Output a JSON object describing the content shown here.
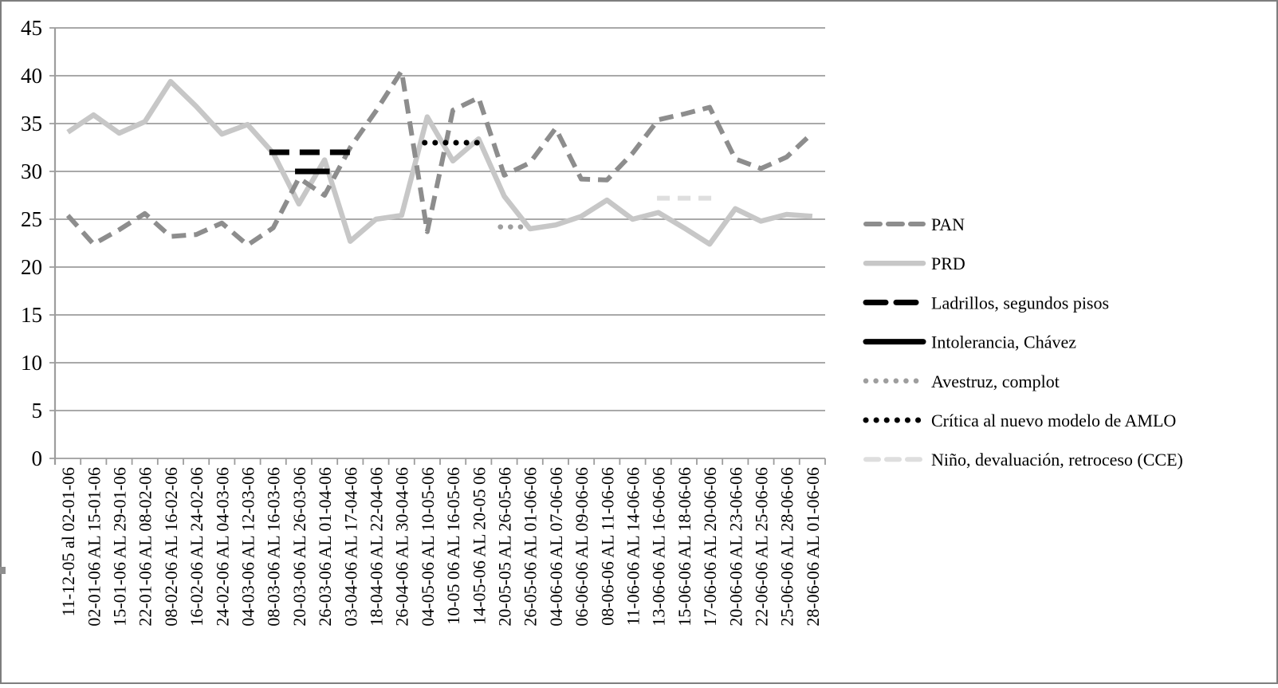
{
  "window": {
    "background": "#ffffff",
    "border_color": "#7e7e7e"
  },
  "colors": {
    "gridline": "#9d9d9d",
    "axis": "#9d9d9d",
    "text": "#000000"
  },
  "chart_data": {
    "type": "line",
    "title": "",
    "xlabel": "",
    "ylabel": "",
    "ylim": [
      0,
      45
    ],
    "ytick_step": 5,
    "ytick_labels": [
      "0",
      "5",
      "10",
      "15",
      "20",
      "25",
      "30",
      "35",
      "40",
      "45"
    ],
    "grid": true,
    "legend_position": "right",
    "categories": [
      "11-12-05 al 02-01-06",
      "02-01-06 AL 15-01-06",
      "15-01-06 AL 29-01-06",
      "22-01-06 AL 08-02-06",
      "08-02-06 AL 16-02-06",
      "16-02-06 AL 24-02-06",
      "24-02-06 AL 04-03-06",
      "04-03-06 AL 12-03-06",
      "08-03-06 AL 16-03-06",
      "20-03-06 AL 26-03-06",
      "26-03-06 AL 01-04-06",
      "03-04-06 AL 17-04-06",
      "18-04-06 AL 22-04-06",
      "26-04-06 AL 30-04-06",
      "04-05-06 AL 10-05-06",
      "10-05 06 AL 16-05-06",
      "14-05-06 AL 20-05 06",
      "20-05-05 AL 26-05-06",
      "26-05-06 AL 01-06-06",
      "04-06-06 AL 07-06-06",
      "06-06-06 AL 09-06-06",
      "08-06-06 AL 11-06-06",
      "11-06-06 AL 14-06-06",
      "13-06-06 AL 16-06-06",
      "15-06-06 AL 18-06-06",
      "17-06-06 AL 20-06-06",
      "20-06-06 AL 23-06-06",
      "22-06-06 AL 25-06-06",
      "25-06-06 AL 28-06-06",
      "28-06-06 AL 01-06-06"
    ],
    "series": [
      {
        "name": "PAN",
        "color": "#8d8d8d",
        "width": 6,
        "dasharray": "18 10",
        "linecap": "butt",
        "values": [
          25.4,
          22.4,
          23.9,
          25.6,
          23.2,
          23.4,
          24.6,
          22.3,
          24.1,
          29.3,
          27.5,
          32.5,
          36.3,
          40.5,
          23.7,
          36.4,
          37.7,
          29.6,
          30.9,
          34.5,
          29.2,
          29.1,
          31.9,
          35.4,
          36.0,
          36.7,
          31.3,
          30.3,
          31.5,
          34.0
        ]
      },
      {
        "name": "PRD",
        "color": "#c7c7c7",
        "width": 6.5,
        "dasharray": "",
        "linecap": "butt",
        "values": [
          34.1,
          35.9,
          34.0,
          35.2,
          39.4,
          36.8,
          33.9,
          34.9,
          31.9,
          26.6,
          31.2,
          22.7,
          25.0,
          25.4,
          35.7,
          31.1,
          33.4,
          27.4,
          24.0,
          24.4,
          25.3,
          27.0,
          25.0,
          25.7,
          24.1,
          22.4,
          26.1,
          24.8,
          25.5,
          25.3
        ]
      }
    ],
    "annotations": [
      {
        "label": "Ladrillos, segundos pisos",
        "color": "#000000",
        "width": 7,
        "dasharray": "25 13",
        "linecap": "butt",
        "value": 32,
        "from": 8.85,
        "to": 12.1
      },
      {
        "label": "Intolerancia, Chávez",
        "color": "#000000",
        "width": 7,
        "dasharray": "",
        "linecap": "butt",
        "value": 30,
        "from": 9.85,
        "to": 11.2
      },
      {
        "label": "Avestruz, complot",
        "color": "#9e9e9e",
        "width": 6.5,
        "dasharray": "0.1 12.5",
        "linecap": "round",
        "value": 24.2,
        "from": 17.85,
        "to": 18.9
      },
      {
        "label": "Crítica al nuevo modelo de AMLO",
        "color": "#000000",
        "width": 7,
        "dasharray": "0.1 13",
        "linecap": "round",
        "value": 33,
        "from": 14.9,
        "to": 16.95
      },
      {
        "label": "Niño, devaluación, retroceso (CCE)",
        "color": "#dedede",
        "width": 6,
        "dasharray": "16 10",
        "linecap": "butt",
        "value": 27.2,
        "from": 23.95,
        "to": 26.1
      }
    ]
  }
}
